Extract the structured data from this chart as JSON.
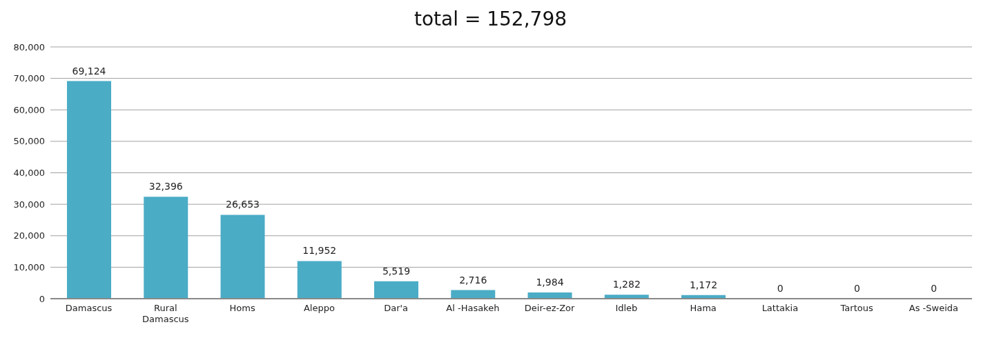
{
  "chart_data": {
    "type": "bar",
    "title": "total = 152,798",
    "categories": [
      "Damascus",
      "Rural Damascus",
      "Homs",
      "Aleppo",
      "Dar'a",
      "Al -Hasakeh",
      "Deir-ez-Zor",
      "Idleb",
      "Hama",
      "Lattakia",
      "Tartous",
      "As -Sweida"
    ],
    "values": [
      69124,
      32396,
      26653,
      11952,
      5519,
      2716,
      1984,
      1282,
      1172,
      0,
      0,
      0
    ],
    "color": "#4bacc6",
    "ylim": [
      0,
      80000
    ],
    "yticks": [
      {
        "value": 0,
        "label": "0"
      },
      {
        "value": 10000,
        "label": "10,000"
      },
      {
        "value": 20000,
        "label": "20,000"
      },
      {
        "value": 30000,
        "label": "30,000"
      },
      {
        "value": 40000,
        "label": "40,000"
      },
      {
        "value": 50000,
        "label": "50,000"
      },
      {
        "value": 60000,
        "label": "60,000"
      },
      {
        "value": 70000,
        "label": "70,000"
      },
      {
        "value": 80000,
        "label": "80,000"
      }
    ],
    "value_labels": [
      "69,124",
      "32,396",
      "26,653",
      "11,952",
      "5,519",
      "2,716",
      "1,984",
      "1,282",
      "1,172",
      "0",
      "0",
      "0"
    ],
    "grid": "y",
    "legend": false
  }
}
